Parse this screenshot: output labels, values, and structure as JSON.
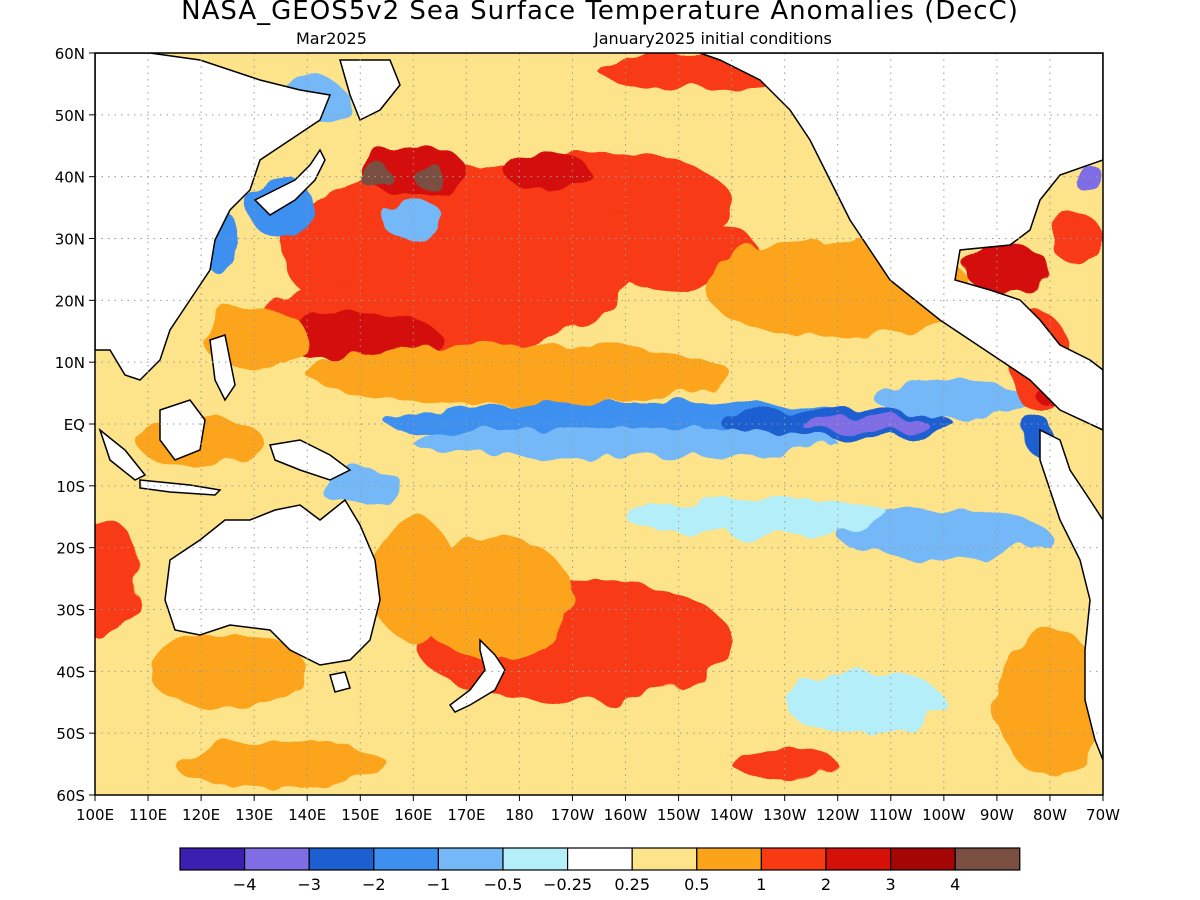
{
  "header": {
    "title": "NASA_GEOS5v2 Sea Surface Temperature Anomalies (DecC)",
    "subtitle_left": "Mar2025",
    "subtitle_right": "January2025 initial conditions"
  },
  "axes": {
    "lat_labels": [
      "60N",
      "50N",
      "40N",
      "30N",
      "20N",
      "10N",
      "EQ",
      "10S",
      "20S",
      "30S",
      "40S",
      "50S",
      "60S"
    ],
    "lon_labels": [
      "100E",
      "110E",
      "120E",
      "130E",
      "140E",
      "150E",
      "160E",
      "170E",
      "180",
      "170W",
      "160W",
      "150W",
      "140W",
      "130W",
      "120W",
      "110W",
      "100W",
      "90W",
      "80W",
      "70W"
    ],
    "lat_range": [
      -60,
      60
    ],
    "lon_range": [
      100,
      290
    ],
    "grid": "dotted"
  },
  "colorbar": {
    "colors": [
      "#3a1fb0",
      "#7f6de6",
      "#1c5fd0",
      "#3d8ff0",
      "#75b8f8",
      "#b4eef8",
      "#ffffff",
      "#fde38a",
      "#fba41a",
      "#f83a12",
      "#d41008",
      "#a40606",
      "#7a4f42"
    ],
    "tick_labels": [
      "−4",
      "−3",
      "−2",
      "−1",
      "−0.5",
      "−0.25",
      "0.25",
      "0.5",
      "1",
      "2",
      "3",
      "4"
    ]
  },
  "chart_data": {
    "type": "heatmap",
    "title": "NASA_GEOS5v2 Sea Surface Temperature Anomalies (DecC)",
    "levels": [
      -4,
      -3,
      -2,
      -1,
      -0.5,
      -0.25,
      0.25,
      0.5,
      1,
      2,
      3,
      4
    ],
    "features": [
      {
        "lon": 205,
        "lat": 0,
        "rx": 50,
        "ry": 3.5,
        "v": -1.2
      },
      {
        "lon": 240,
        "lat": 0,
        "rx": 22,
        "ry": 2.5,
        "v": -2.2
      },
      {
        "lon": 245,
        "lat": 0,
        "rx": 12,
        "ry": 1.3,
        "v": -3.3
      },
      {
        "lon": 200,
        "lat": -3,
        "rx": 40,
        "ry": 2.5,
        "v": -0.9
      },
      {
        "lon": 262,
        "lat": 4,
        "rx": 15,
        "ry": 3,
        "v": -0.7
      },
      {
        "lon": 278,
        "lat": -2,
        "rx": 3,
        "ry": 3,
        "v": -2.2
      },
      {
        "lon": 260,
        "lat": -18,
        "rx": 20,
        "ry": 4,
        "v": -0.7
      },
      {
        "lon": 225,
        "lat": -15,
        "rx": 25,
        "ry": 3,
        "v": -0.4
      },
      {
        "lon": 245,
        "lat": -45,
        "rx": 15,
        "ry": 5,
        "v": -0.4
      },
      {
        "lon": 170,
        "lat": 28,
        "rx": 35,
        "ry": 14,
        "v": 1.3
      },
      {
        "lon": 160,
        "lat": 17,
        "rx": 30,
        "ry": 6,
        "v": 1.6
      },
      {
        "lon": 150,
        "lat": 14,
        "rx": 15,
        "ry": 4,
        "v": 2.1
      },
      {
        "lon": 195,
        "lat": 36,
        "rx": 25,
        "ry": 8,
        "v": 1.5
      },
      {
        "lon": 205,
        "lat": 28,
        "rx": 20,
        "ry": 6,
        "v": 1.3
      },
      {
        "lon": 160,
        "lat": 41,
        "rx": 10,
        "ry": 4,
        "v": 2.8
      },
      {
        "lon": 153,
        "lat": 40,
        "rx": 3,
        "ry": 2,
        "v": 4.2
      },
      {
        "lon": 163,
        "lat": 40,
        "rx": 3,
        "ry": 2,
        "v": 4.2
      },
      {
        "lon": 185,
        "lat": 41,
        "rx": 8,
        "ry": 3,
        "v": 2.5
      },
      {
        "lon": 130,
        "lat": 14,
        "rx": 10,
        "ry": 5,
        "v": 0.9
      },
      {
        "lon": 120,
        "lat": -3,
        "rx": 12,
        "ry": 4,
        "v": 0.8
      },
      {
        "lon": 240,
        "lat": 22,
        "rx": 25,
        "ry": 8,
        "v": 0.55
      },
      {
        "lon": 180,
        "lat": 8,
        "rx": 40,
        "ry": 5,
        "v": 0.6
      },
      {
        "lon": 190,
        "lat": -35,
        "rx": 30,
        "ry": 10,
        "v": 1.5
      },
      {
        "lon": 175,
        "lat": -28,
        "rx": 15,
        "ry": 10,
        "v": 0.9
      },
      {
        "lon": 160,
        "lat": -25,
        "rx": 8,
        "ry": 10,
        "v": 0.9
      },
      {
        "lon": 125,
        "lat": -40,
        "rx": 15,
        "ry": 6,
        "v": 0.9
      },
      {
        "lon": 102,
        "lat": -25,
        "rx": 6,
        "ry": 10,
        "v": 1.6
      },
      {
        "lon": 135,
        "lat": -55,
        "rx": 20,
        "ry": 4,
        "v": 0.7
      },
      {
        "lon": 280,
        "lat": -45,
        "rx": 10,
        "ry": 12,
        "v": 0.7
      },
      {
        "lon": 278,
        "lat": 10,
        "rx": 6,
        "ry": 8,
        "v": 1.0
      },
      {
        "lon": 280,
        "lat": 5,
        "rx": 3,
        "ry": 2,
        "v": 2.2
      },
      {
        "lon": 272,
        "lat": 25,
        "rx": 8,
        "ry": 4,
        "v": 2.1
      },
      {
        "lon": 285,
        "lat": 30,
        "rx": 5,
        "ry": 4,
        "v": 1.8
      },
      {
        "lon": 287,
        "lat": 40,
        "rx": 3,
        "ry": 2,
        "v": -3.2
      },
      {
        "lon": 135,
        "lat": 35,
        "rx": 6,
        "ry": 5,
        "v": -1.1
      },
      {
        "lon": 123,
        "lat": 30,
        "rx": 4,
        "ry": 5,
        "v": -1.2
      },
      {
        "lon": 140,
        "lat": 52,
        "rx": 8,
        "ry": 4,
        "v": -0.9
      },
      {
        "lon": 160,
        "lat": 33,
        "rx": 6,
        "ry": 3,
        "v": -0.9
      },
      {
        "lon": 150,
        "lat": -10,
        "rx": 8,
        "ry": 3,
        "v": -0.8
      },
      {
        "lon": 230,
        "lat": -55,
        "rx": 10,
        "ry": 2,
        "v": 1.4
      },
      {
        "lon": 215,
        "lat": 57,
        "rx": 20,
        "ry": 3,
        "v": 1.5
      }
    ]
  }
}
